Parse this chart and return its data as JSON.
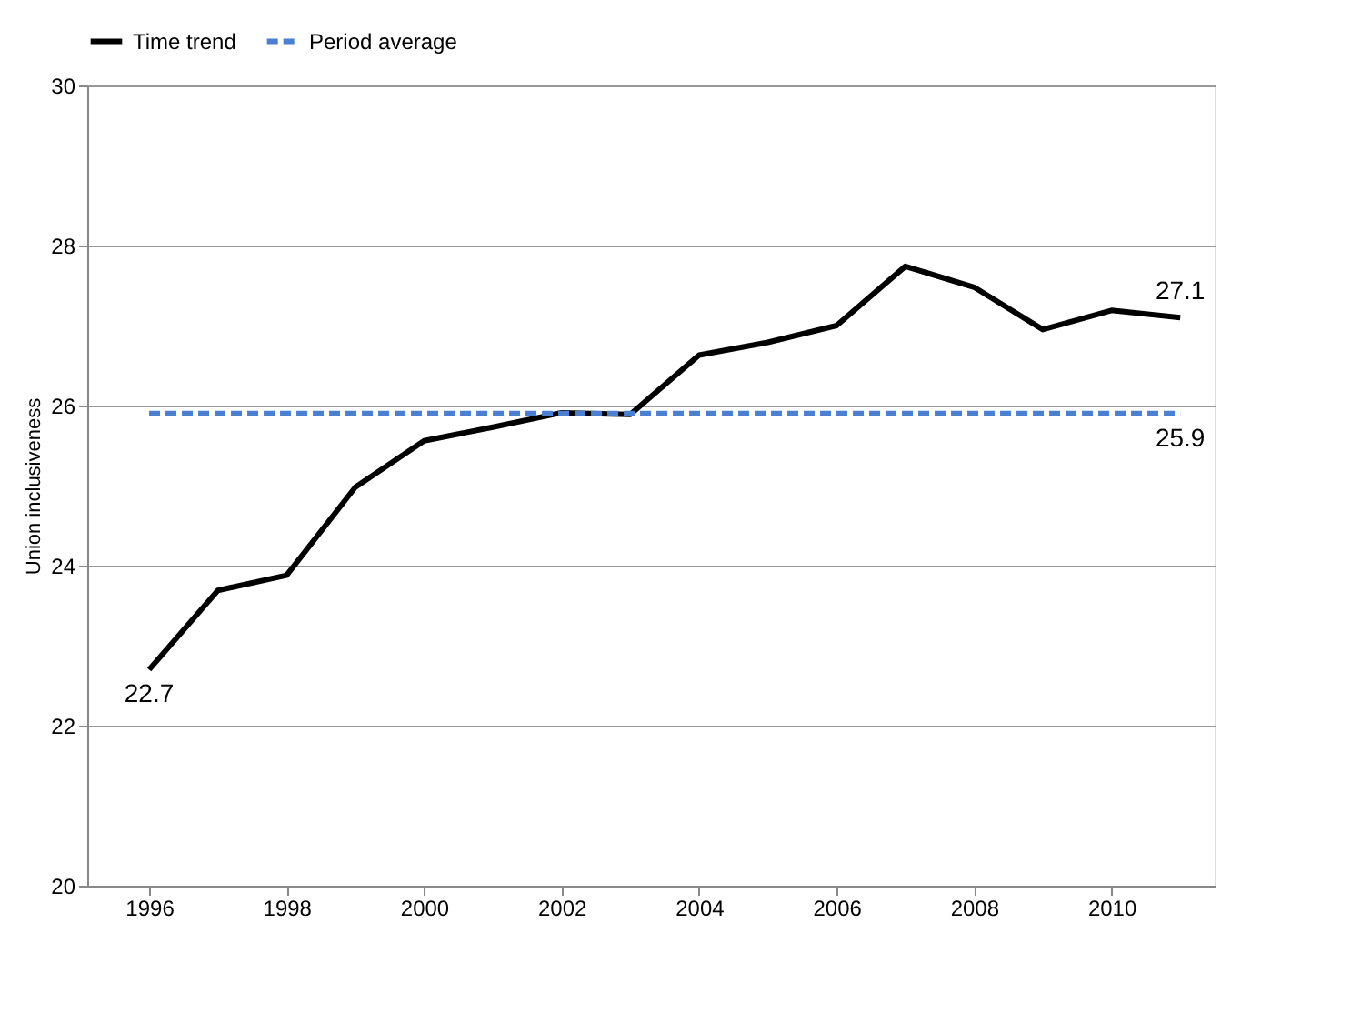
{
  "chart_data": {
    "type": "line",
    "ylabel": "Union inclusiveness",
    "x": [
      1996,
      1997,
      1998,
      1999,
      2000,
      2001,
      2002,
      2003,
      2004,
      2005,
      2006,
      2007,
      2008,
      2009,
      2010,
      2011
    ],
    "series": [
      {
        "name": "Time trend",
        "color": "#000000",
        "line_style": "solid",
        "value_labels": [
          "22.7",
          null,
          null,
          null,
          null,
          null,
          null,
          null,
          null,
          null,
          null,
          null,
          null,
          null,
          null,
          "27.1"
        ],
        "values": [
          22.7,
          23.69,
          23.88,
          24.98,
          25.56,
          25.73,
          25.91,
          25.89,
          26.63,
          26.79,
          27.0,
          27.74,
          27.48,
          26.95,
          27.19,
          27.1
        ]
      },
      {
        "name": "Period average",
        "color": "#4a7fd1",
        "line_style": "dashed",
        "value_labels": [
          null,
          null,
          null,
          null,
          null,
          null,
          null,
          null,
          null,
          null,
          null,
          null,
          null,
          null,
          null,
          "25.9"
        ],
        "values": [
          25.9,
          25.9,
          25.9,
          25.9,
          25.9,
          25.9,
          25.9,
          25.9,
          25.9,
          25.9,
          25.9,
          25.9,
          25.9,
          25.9,
          25.9,
          25.9
        ]
      }
    ],
    "xlim": [
      1995.1,
      2011.5
    ],
    "xticks": [
      1996,
      1998,
      2000,
      2002,
      2004,
      2006,
      2008,
      2010
    ],
    "ylim": [
      20,
      30
    ],
    "yticks": [
      20,
      22,
      24,
      26,
      28,
      30
    ],
    "grid": "y",
    "legend": "top",
    "marker": "none"
  }
}
